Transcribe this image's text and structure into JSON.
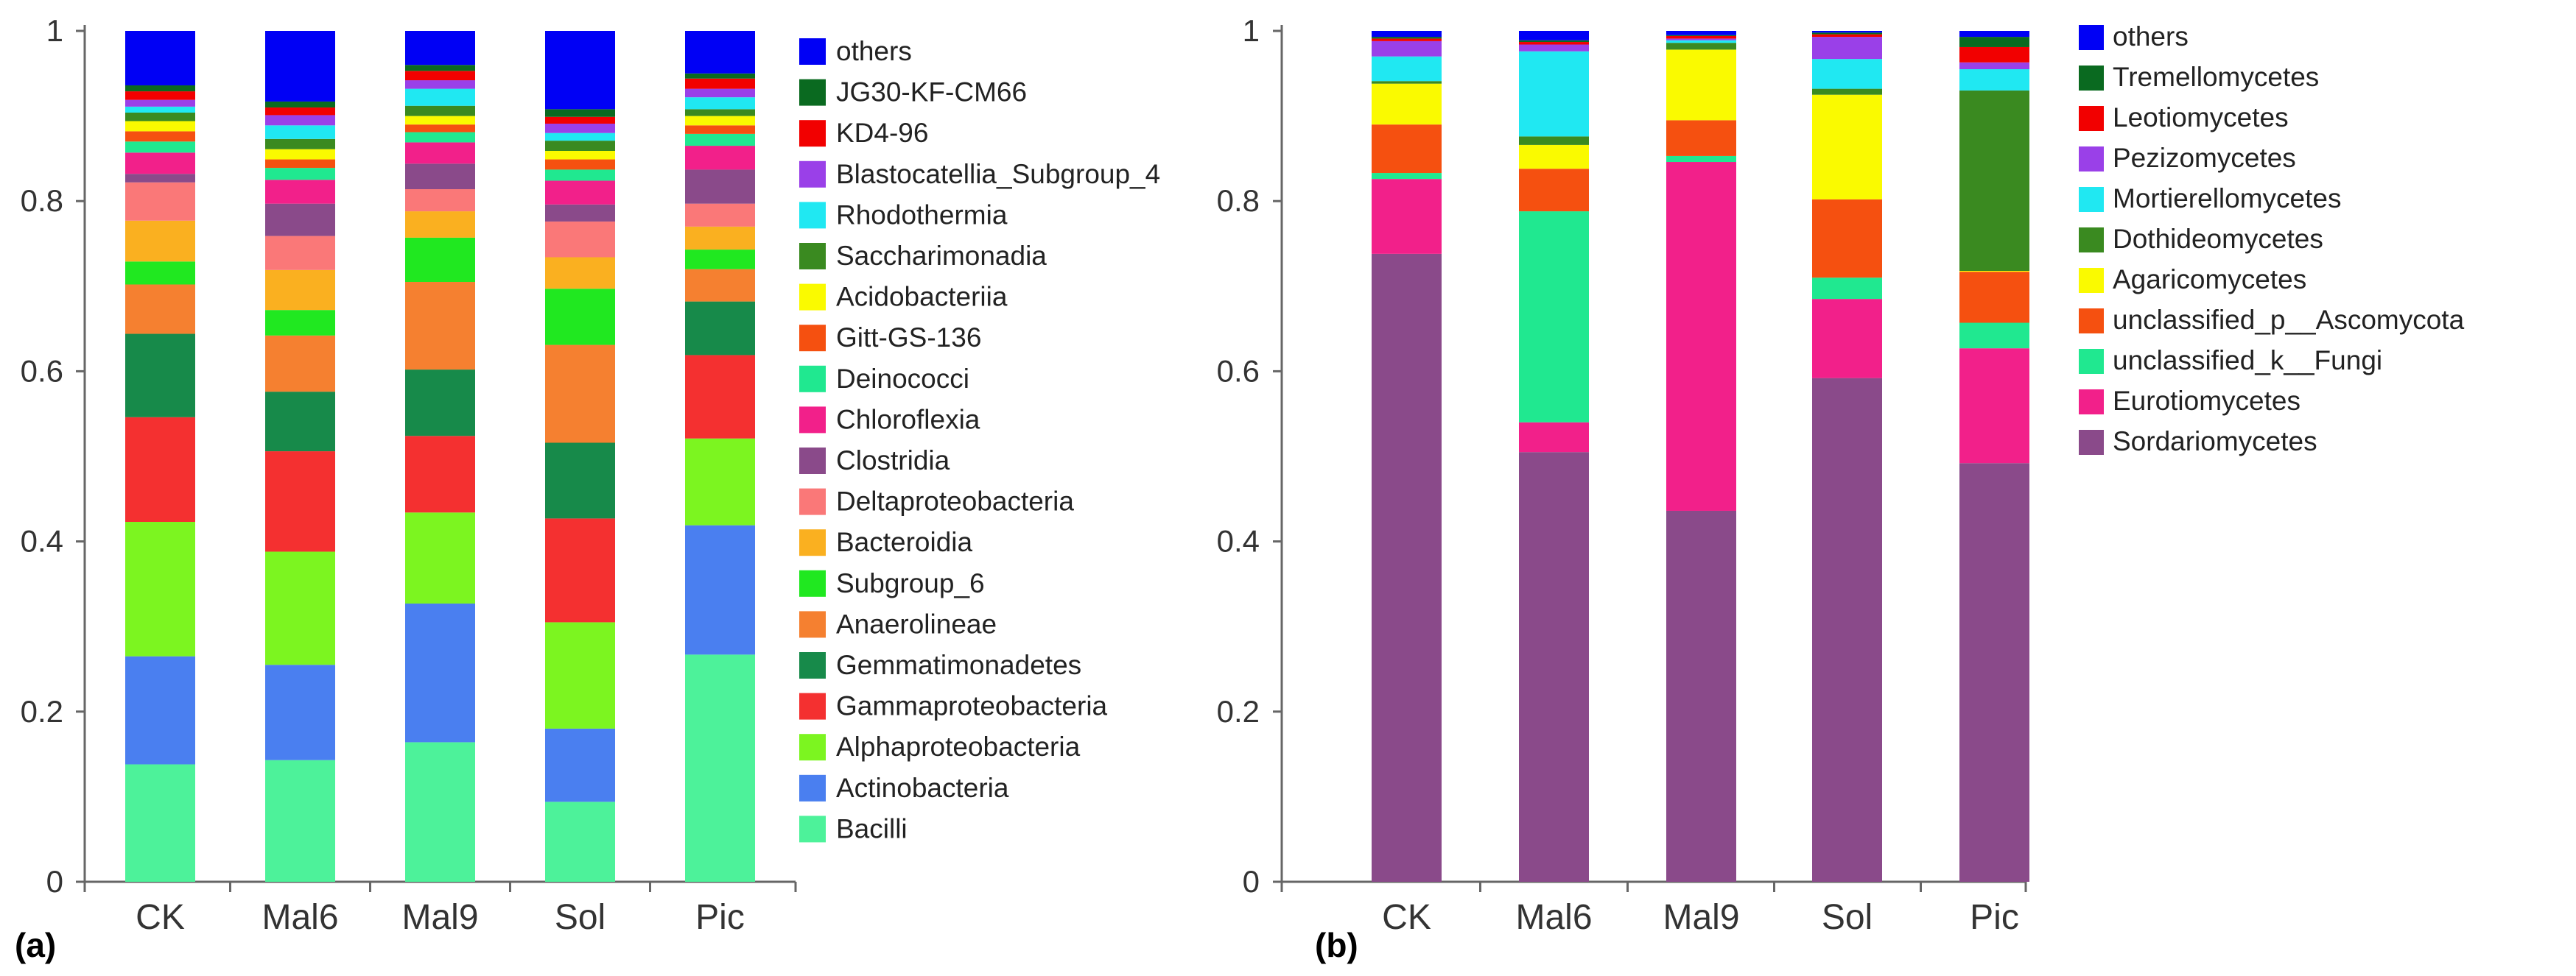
{
  "chart_data": [
    {
      "type": "bar",
      "stacked": true,
      "panel_label": "(a)",
      "categories": [
        "CK",
        "Mal6",
        "Mal9",
        "Sol",
        "Pic"
      ],
      "ylim": [
        0,
        1
      ],
      "yticks": [
        "0",
        "0.2",
        "0.4",
        "0.6",
        "0.8",
        "1"
      ],
      "ytick_values": [
        0,
        0.2,
        0.4,
        0.6,
        0.8,
        1
      ],
      "legend_position": "right",
      "series": [
        {
          "name": "Bacilli",
          "color": "#4df29a",
          "values": [
            0.138,
            0.143,
            0.164,
            0.094,
            0.267
          ]
        },
        {
          "name": "Actinobacteria",
          "color": "#4a7ff0",
          "values": [
            0.127,
            0.112,
            0.163,
            0.086,
            0.152
          ]
        },
        {
          "name": "Alphaproteobacteria",
          "color": "#7cf520",
          "values": [
            0.158,
            0.133,
            0.107,
            0.125,
            0.102
          ]
        },
        {
          "name": "Gammaproteobacteria",
          "color": "#f43030",
          "values": [
            0.123,
            0.118,
            0.09,
            0.122,
            0.098
          ]
        },
        {
          "name": "Gemmatimonadetes",
          "color": "#178a4a",
          "values": [
            0.098,
            0.07,
            0.078,
            0.089,
            0.063
          ]
        },
        {
          "name": "Anaerolineae",
          "color": "#f58030",
          "values": [
            0.058,
            0.066,
            0.103,
            0.115,
            0.038
          ]
        },
        {
          "name": "Subgroup_6",
          "color": "#20e820",
          "values": [
            0.027,
            0.03,
            0.052,
            0.066,
            0.023
          ]
        },
        {
          "name": "Bacteroidia",
          "color": "#fab020",
          "values": [
            0.048,
            0.047,
            0.031,
            0.037,
            0.027
          ]
        },
        {
          "name": "Deltaproteobacteria",
          "color": "#fa7878",
          "values": [
            0.045,
            0.04,
            0.026,
            0.042,
            0.027
          ]
        },
        {
          "name": "Clostridia",
          "color": "#8a4a8a",
          "values": [
            0.01,
            0.038,
            0.03,
            0.02,
            0.04
          ]
        },
        {
          "name": "Chloroflexia",
          "color": "#f2208a",
          "values": [
            0.025,
            0.028,
            0.025,
            0.028,
            0.028
          ]
        },
        {
          "name": "Deinococci",
          "color": "#20e890",
          "values": [
            0.013,
            0.014,
            0.012,
            0.013,
            0.014
          ]
        },
        {
          "name": "Gitt-GS-136",
          "color": "#f55010",
          "values": [
            0.012,
            0.01,
            0.009,
            0.012,
            0.01
          ]
        },
        {
          "name": "Acidobacteriia",
          "color": "#fafa00",
          "values": [
            0.012,
            0.012,
            0.01,
            0.01,
            0.011
          ]
        },
        {
          "name": "Saccharimonadia",
          "color": "#3a8a20",
          "values": [
            0.01,
            0.012,
            0.012,
            0.012,
            0.008
          ]
        },
        {
          "name": "Rhodothermia",
          "color": "#20e8f2",
          "values": [
            0.007,
            0.016,
            0.02,
            0.009,
            0.014
          ]
        },
        {
          "name": "Blastocatellia_Subgroup_4",
          "color": "#9a40e8",
          "values": [
            0.008,
            0.012,
            0.01,
            0.011,
            0.01
          ]
        },
        {
          "name": "KD4-96",
          "color": "#f20000",
          "values": [
            0.01,
            0.009,
            0.011,
            0.008,
            0.012
          ]
        },
        {
          "name": "JG30-KF-CM66",
          "color": "#0a6a20",
          "values": [
            0.007,
            0.007,
            0.007,
            0.009,
            0.006
          ]
        },
        {
          "name": "others",
          "color": "#0000f5",
          "values": [
            0.064,
            0.083,
            0.04,
            0.092,
            0.05
          ]
        }
      ]
    },
    {
      "type": "bar",
      "stacked": true,
      "panel_label": "(b)",
      "categories": [
        "CK",
        "Mal6",
        "Mal9",
        "Sol",
        "Pic"
      ],
      "ylim": [
        0,
        1
      ],
      "yticks": [
        "0",
        "0.2",
        "0.4",
        "0.6",
        "0.8",
        "1"
      ],
      "ytick_values": [
        0,
        0.2,
        0.4,
        0.6,
        0.8,
        1
      ],
      "legend_position": "right",
      "series": [
        {
          "name": "Sordariomycetes",
          "color": "#8a4a8a",
          "values": [
            0.738,
            0.505,
            0.436,
            0.592,
            0.492
          ]
        },
        {
          "name": "Eurotiomycetes",
          "color": "#f2208a",
          "values": [
            0.088,
            0.035,
            0.41,
            0.093,
            0.135
          ]
        },
        {
          "name": "unclassified_k__Fungi",
          "color": "#20e890",
          "values": [
            0.007,
            0.248,
            0.007,
            0.025,
            0.03
          ]
        },
        {
          "name": "unclassified_p__Ascomycota",
          "color": "#f55010",
          "values": [
            0.057,
            0.05,
            0.042,
            0.092,
            0.06
          ]
        },
        {
          "name": "Agaricomycetes",
          "color": "#fafa00",
          "values": [
            0.048,
            0.028,
            0.083,
            0.123,
            0.001
          ]
        },
        {
          "name": "Dothideomycetes",
          "color": "#3a8a20",
          "values": [
            0.003,
            0.01,
            0.008,
            0.007,
            0.212
          ]
        },
        {
          "name": "Mortierellomycetes",
          "color": "#20e8f2",
          "values": [
            0.029,
            0.1,
            0.003,
            0.035,
            0.025
          ]
        },
        {
          "name": "Pezizomycetes",
          "color": "#9a40e8",
          "values": [
            0.018,
            0.008,
            0.002,
            0.026,
            0.008
          ]
        },
        {
          "name": "Leotiomycetes",
          "color": "#f20000",
          "values": [
            0.003,
            0.003,
            0.003,
            0.003,
            0.018
          ]
        },
        {
          "name": "Tremellomycetes",
          "color": "#0a6a20",
          "values": [
            0.002,
            0.002,
            0.001,
            0.002,
            0.012
          ]
        },
        {
          "name": "others",
          "color": "#0000f5",
          "values": [
            0.007,
            0.011,
            0.005,
            0.002,
            0.007
          ]
        }
      ]
    }
  ]
}
